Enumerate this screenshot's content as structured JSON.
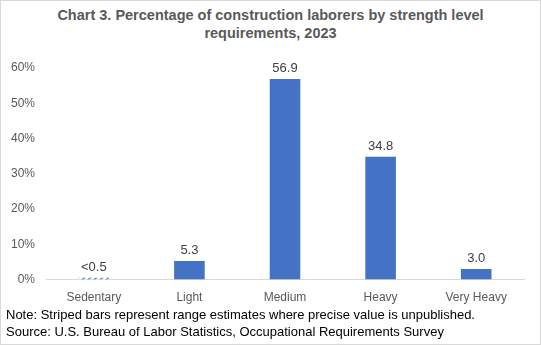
{
  "chart_data": {
    "type": "bar",
    "title": "Chart 3. Percentage of construction laborers by strength level requirements, 2023",
    "categories": [
      "Sedentary",
      "Light",
      "Medium",
      "Heavy",
      "Very Heavy"
    ],
    "values": [
      0.5,
      5.3,
      56.9,
      34.8,
      3.0
    ],
    "value_labels": [
      "<0.5",
      "5.3",
      "56.9",
      "34.8",
      "3.0"
    ],
    "color": "#4472c4",
    "data_labels": true,
    "grid": false,
    "ylim": [
      0,
      60
    ],
    "yticks": [
      {
        "value": 0,
        "label": "0%"
      },
      {
        "value": 10,
        "label": "10%"
      },
      {
        "value": 20,
        "label": "20%"
      },
      {
        "value": 30,
        "label": "30%"
      },
      {
        "value": 40,
        "label": "40%"
      },
      {
        "value": 50,
        "label": "50%"
      },
      {
        "value": 60,
        "label": "60%"
      }
    ],
    "notes": [
      "Note: Striped bars represent range estimates where precise value is unpublished.",
      "Source: U.S. Bureau of Labor Statistics, Occupational Requirements Survey"
    ]
  }
}
